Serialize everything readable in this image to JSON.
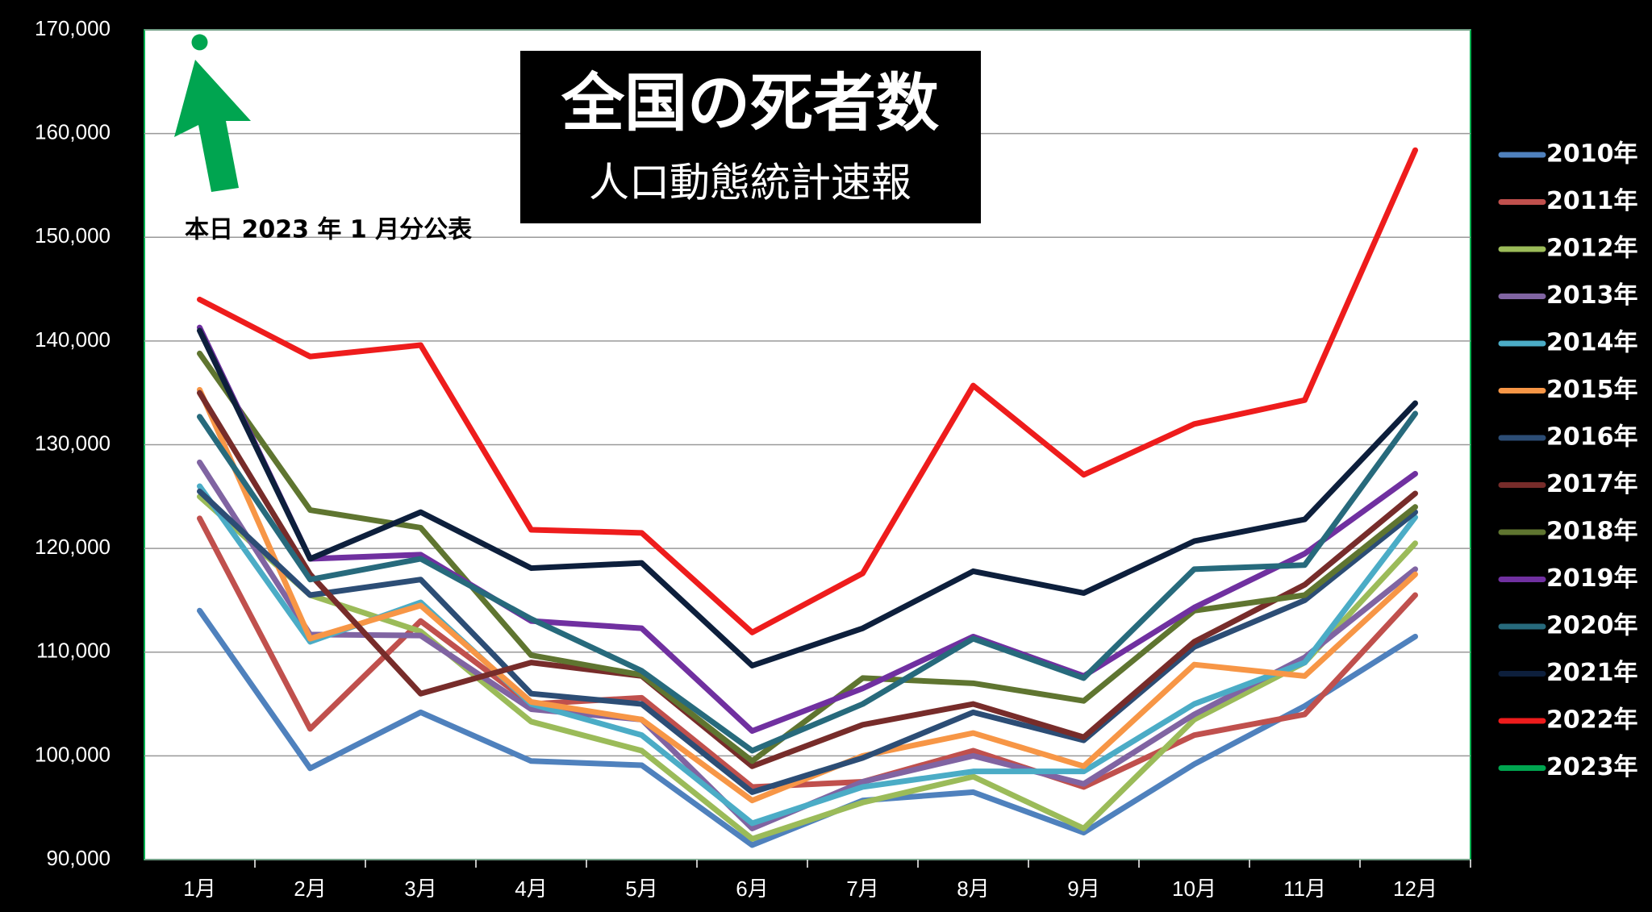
{
  "chart_data": {
    "type": "line",
    "title": "全国の死者数",
    "subtitle": "人口動態統計速報",
    "annotation": "本日 2023 年 1 月分公表",
    "categories": [
      "1月",
      "2月",
      "3月",
      "4月",
      "5月",
      "6月",
      "7月",
      "8月",
      "9月",
      "10月",
      "11月",
      "12月"
    ],
    "ylim": [
      90000,
      170000
    ],
    "yticks": [
      {
        "value": 90000,
        "label": "90,000"
      },
      {
        "value": 100000,
        "label": "100,000"
      },
      {
        "value": 110000,
        "label": "110,000"
      },
      {
        "value": 120000,
        "label": "120,000"
      },
      {
        "value": 130000,
        "label": "130,000"
      },
      {
        "value": 140000,
        "label": "140,000"
      },
      {
        "value": 150000,
        "label": "150,000"
      },
      {
        "value": 160000,
        "label": "160,000"
      },
      {
        "value": 170000,
        "label": "170,000"
      }
    ],
    "grid": true,
    "legend": "right",
    "series": [
      {
        "name": "2010年",
        "color": "#4f81bd",
        "values": [
          114000,
          98800,
          104200,
          99500,
          99100,
          91400,
          95700,
          96500,
          92600,
          99200,
          104800,
          111500
        ]
      },
      {
        "name": "2011年",
        "color": "#c0504d",
        "values": [
          122900,
          102600,
          113000,
          105000,
          105600,
          97000,
          97500,
          100500,
          97000,
          102000,
          104000,
          115500
        ]
      },
      {
        "name": "2012年",
        "color": "#9bbb59",
        "values": [
          125000,
          115500,
          112000,
          103300,
          100500,
          92000,
          95500,
          98000,
          93000,
          103500,
          109000,
          120500
        ]
      },
      {
        "name": "2013年",
        "color": "#8064a2",
        "values": [
          128300,
          111700,
          111600,
          104500,
          103500,
          93000,
          97500,
          100000,
          97300,
          104000,
          109500,
          118000
        ]
      },
      {
        "name": "2014年",
        "color": "#4bacc6",
        "values": [
          126000,
          111000,
          114800,
          105000,
          102000,
          93500,
          97000,
          98500,
          98500,
          105000,
          109000,
          123000
        ]
      },
      {
        "name": "2015年",
        "color": "#f79646",
        "values": [
          135300,
          111300,
          114500,
          105200,
          103500,
          95700,
          100000,
          102200,
          99000,
          108800,
          107700,
          117500
        ]
      },
      {
        "name": "2016年",
        "color": "#2c4d75",
        "values": [
          125500,
          115500,
          117000,
          106000,
          105000,
          96500,
          99800,
          104200,
          101500,
          110500,
          115000,
          123500
        ]
      },
      {
        "name": "2017年",
        "color": "#772c2a",
        "values": [
          135000,
          117500,
          106000,
          109000,
          107700,
          99000,
          103000,
          105000,
          101800,
          111000,
          116500,
          125300
        ]
      },
      {
        "name": "2018年",
        "color": "#5f7530",
        "values": [
          138800,
          123700,
          122000,
          109700,
          107800,
          99500,
          107500,
          107000,
          105300,
          114000,
          115500,
          124000
        ]
      },
      {
        "name": "2019年",
        "color": "#7030a0",
        "values": [
          141300,
          119000,
          119400,
          113000,
          112300,
          102400,
          106500,
          111500,
          107700,
          114300,
          119500,
          127200
        ]
      },
      {
        "name": "2020年",
        "color": "#276a7c",
        "values": [
          132700,
          117000,
          119000,
          113200,
          108200,
          100500,
          105000,
          111300,
          107500,
          118000,
          118400,
          133000
        ]
      },
      {
        "name": "2021年",
        "color": "#0d1f3c",
        "values": [
          141000,
          119000,
          123500,
          118100,
          118600,
          108700,
          112300,
          117800,
          115700,
          120700,
          122800,
          134000
        ]
      },
      {
        "name": "2022年",
        "color": "#ee1c1c",
        "values": [
          144000,
          138500,
          139600,
          121800,
          121500,
          111900,
          117600,
          135700,
          127100,
          132000,
          134300,
          158400
        ]
      },
      {
        "name": "2023年",
        "color": "#00a550",
        "values": [
          168800,
          null,
          null,
          null,
          null,
          null,
          null,
          null,
          null,
          null,
          null,
          null
        ]
      }
    ]
  }
}
